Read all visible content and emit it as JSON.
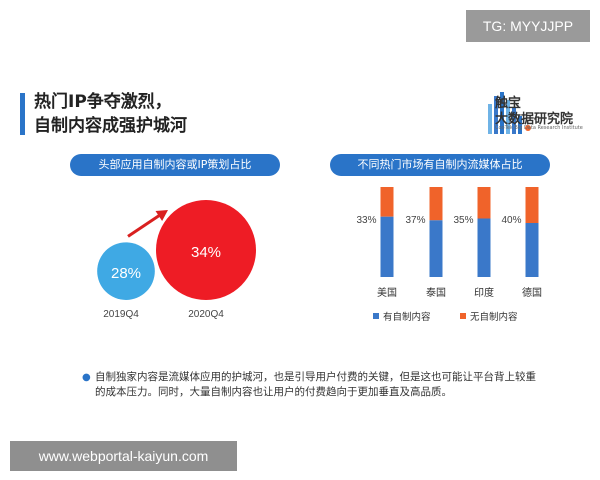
{
  "watermarks": {
    "top_right": "TG: MYYJJPP",
    "bottom_left": "www.webportal-kaiyun.com"
  },
  "title": {
    "line1": "热门IP争夺激烈，",
    "line2": "自制内容成强护城河"
  },
  "logo": {
    "name1": "触宝",
    "name2": "大数据研究院",
    "tagline": "CooTek Big Data Research Institute"
  },
  "left_panel": {
    "header": "头部应用自制内容或IP策划占比"
  },
  "right_panel": {
    "header": "不同热门市场有自制内流媒体占比"
  },
  "colors": {
    "accent": "#2a74c8",
    "own_content": "#3a78c9",
    "non_own": "#f0632a",
    "circle_2019": "#3fa9e4",
    "circle_2020": "#ee1c25",
    "arrow": "#d9201f"
  },
  "chart_data": [
    {
      "type": "bubble",
      "categories": [
        "2019Q4",
        "2020Q4"
      ],
      "values": [
        28,
        34
      ],
      "value_labels": [
        "28%",
        "34%"
      ]
    },
    {
      "type": "bar",
      "stacked": true,
      "categories": [
        "美国",
        "泰国",
        "印度",
        "德国"
      ],
      "series": [
        {
          "name": "有自制内容",
          "values": [
            67,
            63,
            65,
            60
          ]
        },
        {
          "name": "无自制内容",
          "values": [
            33,
            37,
            35,
            40
          ]
        }
      ],
      "value_labels": [
        "33%",
        "37%",
        "35%",
        "40%"
      ],
      "legend": "bottom"
    }
  ],
  "note": "自制独家内容是流媒体应用的护城河，也是引导用户付费的关键，但是这也可能让平台背上较重的成本压力。同时，大量自制内容也让用户的付费趋向于更加垂直及高品质。"
}
